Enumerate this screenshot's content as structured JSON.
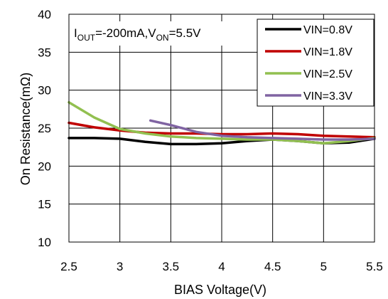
{
  "chart_data": {
    "type": "line",
    "xlabel": "BIAS Voltage(V)",
    "ylabel": "On Resistance(mΩ)",
    "xlim": [
      2.5,
      5.5
    ],
    "ylim": [
      10,
      40
    ],
    "x_ticks": [
      "2.5",
      "3",
      "3.5",
      "4",
      "4.5",
      "5",
      "5.5"
    ],
    "y_ticks": [
      "10",
      "15",
      "20",
      "25",
      "30",
      "35",
      "40"
    ],
    "grid": true,
    "legend_position": "top-right",
    "annotation": {
      "I": "I",
      "sub1": "OUT",
      "mid": "=-200mA,V",
      "sub2": "ON",
      "tail": "=5.5V"
    },
    "series": [
      {
        "name": "VIN=0.8V",
        "color": "#000000",
        "x": [
          2.5,
          2.75,
          3.0,
          3.25,
          3.5,
          3.75,
          4.0,
          4.25,
          4.5,
          4.75,
          5.0,
          5.25,
          5.5
        ],
        "y": [
          23.7,
          23.7,
          23.6,
          23.2,
          22.9,
          22.9,
          23.0,
          23.3,
          23.5,
          23.3,
          23.0,
          23.1,
          23.6
        ]
      },
      {
        "name": "VIN=1.8V",
        "color": "#c00000",
        "x": [
          2.5,
          2.75,
          3.0,
          3.25,
          3.5,
          3.75,
          4.0,
          4.25,
          4.5,
          4.75,
          5.0,
          5.25,
          5.5
        ],
        "y": [
          25.7,
          25.1,
          24.7,
          24.4,
          24.3,
          24.3,
          24.2,
          24.2,
          24.3,
          24.2,
          24.0,
          23.9,
          23.8
        ]
      },
      {
        "name": "VIN=2.5V",
        "color": "#92c050",
        "x": [
          2.5,
          2.75,
          3.0,
          3.25,
          3.5,
          3.75,
          4.0,
          4.25,
          4.5,
          4.75,
          5.0,
          5.25,
          5.5
        ],
        "y": [
          28.4,
          26.4,
          24.9,
          24.3,
          23.9,
          23.7,
          23.6,
          23.5,
          23.5,
          23.3,
          23.0,
          23.3,
          23.7
        ]
      },
      {
        "name": "VIN=3.3V",
        "color": "#8064a2",
        "x": [
          3.3,
          3.5,
          3.75,
          4.0,
          4.25,
          4.5,
          4.75,
          5.0,
          5.25,
          5.5
        ],
        "y": [
          26.0,
          25.4,
          24.5,
          24.0,
          23.8,
          23.7,
          23.6,
          23.5,
          23.5,
          23.6
        ]
      }
    ]
  }
}
